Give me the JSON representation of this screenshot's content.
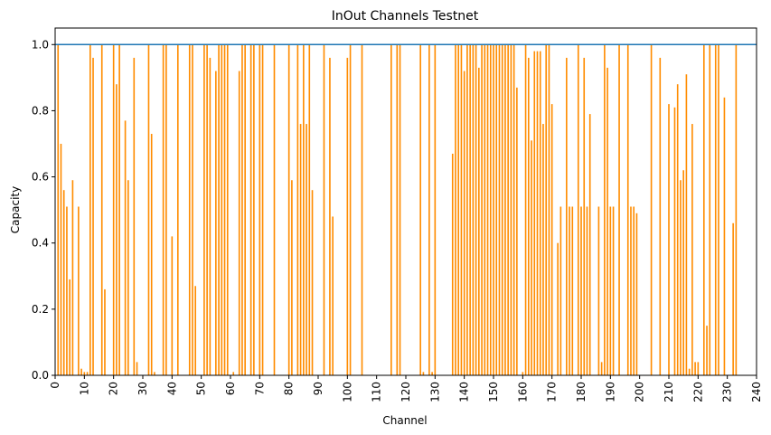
{
  "chart_data": {
    "type": "bar",
    "title": "InOut Channels Testnet",
    "xlabel": "Channel",
    "ylabel": "Capacity",
    "xlim": [
      0,
      240
    ],
    "ylim": [
      0,
      1.05
    ],
    "x_ticks": [
      0,
      10,
      20,
      30,
      40,
      50,
      60,
      70,
      80,
      90,
      100,
      110,
      120,
      130,
      140,
      150,
      160,
      170,
      180,
      190,
      200,
      210,
      220,
      230,
      240
    ],
    "y_ticks": [
      0.0,
      0.2,
      0.4,
      0.6,
      0.8,
      1.0
    ],
    "y_tick_labels": [
      "0.0",
      "0.2",
      "0.4",
      "0.6",
      "0.8",
      "1.0"
    ],
    "grid": false,
    "reference_line": {
      "y": 1.0,
      "color": "#1f77b4"
    },
    "bar_color": "#ff8c00",
    "series": [
      {
        "values": [
          0,
          1,
          0.7,
          0.56,
          0.51,
          0.29,
          0.59,
          0,
          0.51,
          0.02,
          0.01,
          0.01,
          1,
          0.96,
          0,
          0,
          1,
          0.26,
          0,
          0,
          1,
          0.88,
          1,
          0,
          0.77,
          0.59,
          0,
          0.96,
          0.04,
          0,
          0,
          0,
          1,
          0.73,
          0.01,
          0,
          0,
          1,
          1,
          0,
          0.42,
          0,
          1,
          0,
          0,
          0,
          1,
          1,
          0.27,
          0,
          0,
          1,
          1,
          0.96,
          0,
          0.92,
          1,
          1,
          1,
          1,
          0,
          0.01,
          0,
          0.92,
          1,
          1,
          0,
          1,
          1,
          0,
          1,
          1,
          0,
          0,
          0,
          1,
          0,
          0,
          0,
          0,
          1,
          0.59,
          0,
          1,
          0.76,
          1,
          0.76,
          1,
          0.56,
          0,
          0,
          0,
          1,
          0,
          0.96,
          0.48,
          0,
          0,
          0,
          0,
          0.96,
          1,
          0,
          0,
          0,
          1,
          0,
          0,
          0,
          0,
          0,
          0,
          0,
          0,
          0,
          1,
          0,
          1,
          1,
          0,
          0,
          0,
          0,
          0,
          0,
          1,
          0.01,
          0,
          1,
          0.01,
          1,
          0,
          0,
          0,
          0,
          0,
          0.67,
          1,
          1,
          1,
          0.92,
          1,
          1,
          1,
          1,
          0.93,
          1,
          1,
          1,
          1,
          1,
          1,
          1,
          1,
          1,
          1,
          1,
          1,
          0.87,
          0,
          0.01,
          1,
          0.96,
          0.71,
          0.98,
          0.98,
          0.98,
          0.76,
          1,
          1,
          0.82,
          0,
          0.4,
          0.51,
          0,
          0.96,
          0.51,
          0.51,
          0,
          1,
          0.51,
          0.96,
          0.51,
          0.79,
          0,
          0,
          0.51,
          0.04,
          1,
          0.93,
          0.51,
          0.51,
          0,
          1,
          0,
          0,
          1,
          0.51,
          0.51,
          0.49,
          0,
          0,
          0,
          0,
          1,
          0,
          0,
          0.96,
          0,
          0,
          0.82,
          0,
          0.81,
          0.88,
          0.59,
          0.62,
          0.91,
          0.02,
          0.76,
          0.04,
          0.04,
          0,
          1,
          0.15,
          1,
          0,
          1,
          1,
          0,
          0.84,
          0,
          0,
          0.46,
          1
        ]
      }
    ]
  }
}
